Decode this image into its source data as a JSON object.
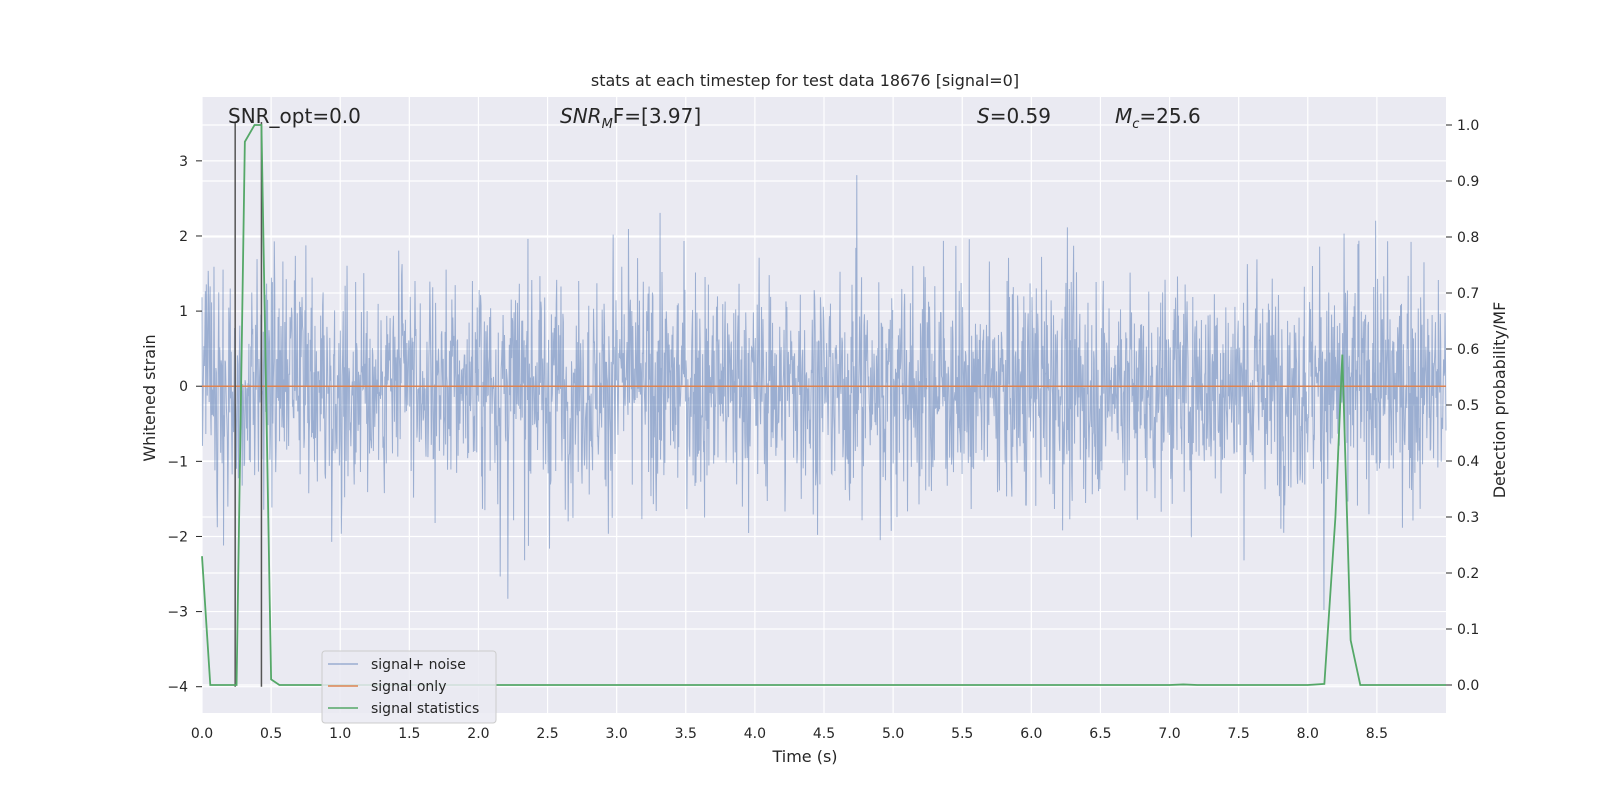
{
  "chart_data": {
    "type": "line",
    "title": "stats at each timestep for test data 18676 [signal=0]",
    "xlabel": "Time (s)",
    "ylabel_left": "Whitened strain",
    "ylabel_right": "Detection probability/MF",
    "xlim": [
      0.0,
      9.0
    ],
    "ylim_left": [
      -4.35,
      3.85
    ],
    "ylim_right": [
      -0.05,
      1.05
    ],
    "x_ticks": [
      "0.0",
      "0.5",
      "1.0",
      "1.5",
      "2.0",
      "2.5",
      "3.0",
      "3.5",
      "4.0",
      "4.5",
      "5.0",
      "5.5",
      "6.0",
      "6.5",
      "7.0",
      "7.5",
      "8.0",
      "8.5"
    ],
    "y_ticks_left": [
      "3",
      "2",
      "1",
      "0",
      "−1",
      "−2",
      "−3",
      "−4"
    ],
    "y_ticks_right": [
      "1.0",
      "0.9",
      "0.8",
      "0.7",
      "0.6",
      "0.5",
      "0.4",
      "0.3",
      "0.2",
      "0.1",
      "0.0"
    ],
    "grid": true,
    "annotations": {
      "snr_opt": "SNR_opt=0.0",
      "snr_mf_main": "SNR",
      "snr_mf_sub": "M",
      "snr_mf_tail": "F=[3.97]",
      "s_main": "S",
      "s_tail": "=0.59",
      "mc_main": "M",
      "mc_sub": "c",
      "mc_tail": "=25.6"
    },
    "legend": {
      "position": "lower-left",
      "entries": [
        "signal+ noise",
        "signal only",
        "signal statistics"
      ]
    },
    "colors": {
      "noise": "#4c72b0",
      "signal_only": "#dd8452",
      "statistics": "#55a868",
      "marker": "#555555",
      "plot_bg": "#eaeaf2",
      "grid": "#ffffff"
    },
    "series": [
      {
        "name": "signal+ noise",
        "axis": "left",
        "note": "dense whitened noise, approx amplitude ±1.5, peaks to ±3.5",
        "envelope_std": 0.9
      },
      {
        "name": "signal only",
        "axis": "left",
        "x": [
          0.0,
          9.0
        ],
        "y": [
          0.0,
          0.0
        ]
      },
      {
        "name": "signal statistics",
        "axis": "right",
        "x": [
          0.0,
          0.06,
          0.2,
          0.25,
          0.31,
          0.38,
          0.43,
          0.5,
          0.56,
          1.0,
          2.0,
          3.0,
          4.0,
          5.0,
          6.0,
          7.0,
          7.1,
          7.2,
          7.5,
          8.0,
          8.12,
          8.2,
          8.25,
          8.31,
          8.38,
          8.45,
          8.6,
          9.0
        ],
        "y": [
          0.23,
          0.0,
          0.0,
          0.0,
          0.97,
          1.0,
          1.0,
          0.01,
          0.0,
          0.0,
          0.0,
          0.0,
          0.0,
          0.0,
          0.0,
          0.0,
          0.001,
          0.0,
          0.0,
          0.0,
          0.002,
          0.3,
          0.59,
          0.08,
          0.0,
          0.0,
          0.0,
          0.0
        ]
      }
    ],
    "markers": {
      "x": [
        0.24,
        0.43
      ],
      "note": "vertical dark lines"
    }
  }
}
